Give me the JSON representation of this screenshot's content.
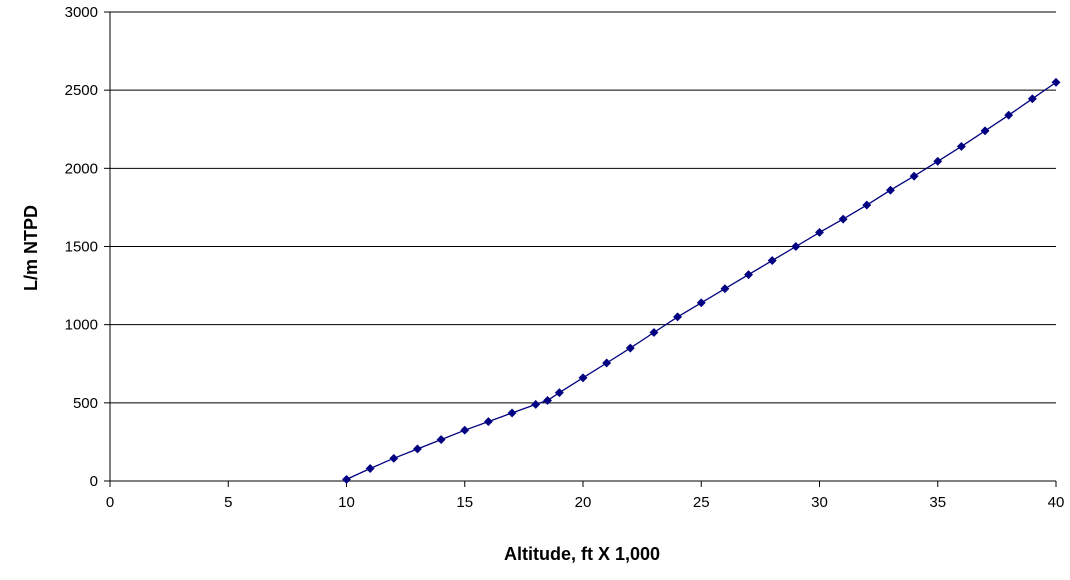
{
  "chart_data": {
    "type": "line",
    "title": "",
    "xlabel": "Altitude, ft X 1,000",
    "ylabel": "L/m NTPD",
    "xlim": [
      0,
      40
    ],
    "ylim": [
      0,
      3000
    ],
    "x_ticks": [
      0,
      5,
      10,
      15,
      20,
      25,
      30,
      35,
      40
    ],
    "y_ticks": [
      0,
      500,
      1000,
      1500,
      2000,
      2500,
      3000
    ],
    "grid": "horizontal",
    "legend": "none",
    "series": [
      {
        "color": "#000080",
        "marker": "diamond",
        "points": [
          [
            10,
            10
          ],
          [
            11,
            80
          ],
          [
            12,
            145
          ],
          [
            13,
            205
          ],
          [
            14,
            265
          ],
          [
            15,
            325
          ],
          [
            16,
            380
          ],
          [
            17,
            435
          ],
          [
            18,
            490
          ],
          [
            18.5,
            515
          ],
          [
            19,
            565
          ],
          [
            20,
            660
          ],
          [
            21,
            755
          ],
          [
            22,
            850
          ],
          [
            23,
            950
          ],
          [
            24,
            1050
          ],
          [
            25,
            1140
          ],
          [
            26,
            1230
          ],
          [
            27,
            1320
          ],
          [
            28,
            1410
          ],
          [
            29,
            1500
          ],
          [
            30,
            1590
          ],
          [
            31,
            1675
          ],
          [
            32,
            1765
          ],
          [
            33,
            1860
          ],
          [
            34,
            1950
          ],
          [
            35,
            2045
          ],
          [
            36,
            2140
          ],
          [
            37,
            2240
          ],
          [
            38,
            2340
          ],
          [
            39,
            2445
          ],
          [
            40,
            2550
          ]
        ]
      }
    ]
  }
}
